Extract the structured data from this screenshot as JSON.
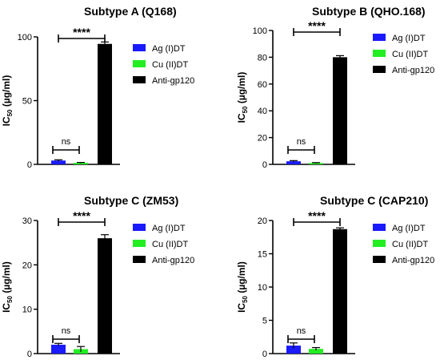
{
  "legend": [
    {
      "label": "Ag (I)DT",
      "color": "#1a1aff"
    },
    {
      "label": "Cu (II)DT",
      "color": "#22ee22"
    },
    {
      "label": "Anti-gp120",
      "color": "#000000"
    }
  ],
  "ylabel_main": "IC",
  "ylabel_sub": "50",
  "ylabel_tail": " (µg/ml)",
  "sig_high": "****",
  "sig_ns": "ns",
  "chart_data": [
    {
      "type": "bar",
      "title": "Subtype A (Q168)",
      "categories": [
        "Ag (I)DT",
        "Cu (II)DT",
        "Anti-gp120"
      ],
      "values": [
        3.0,
        1.2,
        94.5
      ],
      "errors": [
        0.6,
        0.3,
        1.5
      ],
      "ylabel": "IC50 (µg/ml)",
      "ylim": [
        0,
        100
      ],
      "yticks": [
        0,
        50,
        100
      ]
    },
    {
      "type": "bar",
      "title": "Subtype B (QHO.168)",
      "categories": [
        "Ag (I)DT",
        "Cu (II)DT",
        "Anti-gp120"
      ],
      "values": [
        2.3,
        1.0,
        80.0
      ],
      "errors": [
        0.5,
        0.3,
        1.2
      ],
      "ylabel": "IC50 (µg/ml)",
      "ylim": [
        0,
        100
      ],
      "yticks": [
        0,
        20,
        40,
        60,
        80,
        100
      ]
    },
    {
      "type": "bar",
      "title": "Subtype C (ZM53)",
      "categories": [
        "Ag (I)DT",
        "Cu (II)DT",
        "Anti-gp120"
      ],
      "values": [
        2.0,
        1.0,
        26.0
      ],
      "errors": [
        0.3,
        0.6,
        0.8
      ],
      "ylabel": "IC50 (µg/ml)",
      "ylim": [
        0,
        30
      ],
      "yticks": [
        0,
        10,
        20,
        30
      ]
    },
    {
      "type": "bar",
      "title": "Subtype C (CAP210)",
      "categories": [
        "Ag (I)DT",
        "Cu (II)DT",
        "Anti-gp120"
      ],
      "values": [
        1.2,
        0.7,
        18.7
      ],
      "errors": [
        0.4,
        0.2,
        0.2
      ],
      "ylabel": "IC50 (µg/ml)",
      "ylim": [
        0,
        20
      ],
      "yticks": [
        0,
        5,
        10,
        15,
        20
      ]
    }
  ]
}
